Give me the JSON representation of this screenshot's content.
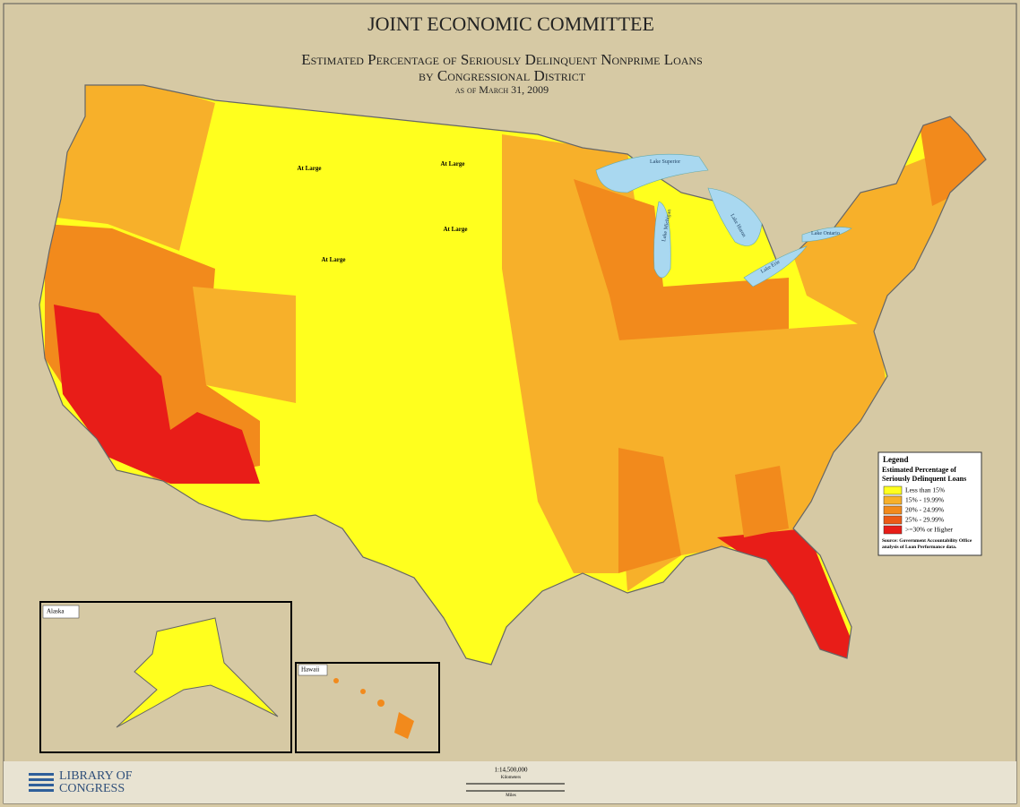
{
  "header": {
    "title": "JOINT ECONOMIC COMMITTEE",
    "subtitle": "Estimated Percentage of Seriously Delinquent Nonprime Loans",
    "subtitle2": "by Congressional District",
    "date": "as of March 31, 2009"
  },
  "legend": {
    "title": "Legend",
    "heading": "Estimated Percentage of Seriously Delinquent Loans",
    "items": [
      {
        "label": "Less than 15%",
        "color": "#ffff1e"
      },
      {
        "label": "15% - 19.99%",
        "color": "#f7b02a"
      },
      {
        "label": "20% - 24.99%",
        "color": "#f28a1c"
      },
      {
        "label": "25% - 29.99%",
        "color": "#ec5a16"
      },
      {
        "label": ">=30% or Higher",
        "color": "#e81d18"
      }
    ],
    "source": "Source: Government Accountability Office analysis of Loan Performance data."
  },
  "map_labels": [
    "At Large",
    "At Large",
    "At Large",
    "At Large"
  ],
  "lakes": [
    "Lake Superior",
    "Lake Michigan",
    "Lake Huron",
    "Lake Erie",
    "Lake Ontario"
  ],
  "insets": [
    "Alaska",
    "Hawaii"
  ],
  "footer": {
    "logo": "LIBRARY OF CONGRESS",
    "scale": "1:14,500,000",
    "km": "Kilometers",
    "mi": "Miles"
  }
}
